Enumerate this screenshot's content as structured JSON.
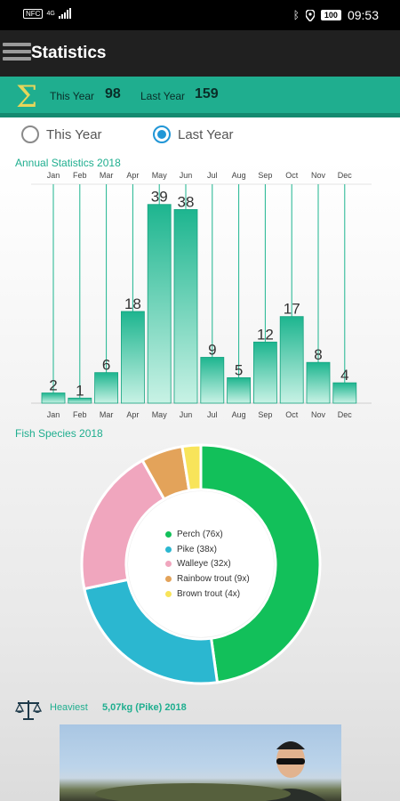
{
  "status_bar": {
    "left_badge": "NFC",
    "network": "4G",
    "battery": "100",
    "time": "09:53"
  },
  "app_bar": {
    "title": "Statistics"
  },
  "summary": {
    "this_year_label": "This Year",
    "this_year_value": "98",
    "last_year_label": "Last Year",
    "last_year_value": "159"
  },
  "filter": {
    "options": [
      {
        "label": "This Year",
        "checked": false
      },
      {
        "label": "Last Year",
        "checked": true
      }
    ]
  },
  "annual": {
    "title": "Annual Statistics 2018"
  },
  "species": {
    "title": "Fish Species 2018"
  },
  "heaviest": {
    "label": "Heaviest",
    "value": "5,07kg (Pike) 2018"
  },
  "colors": {
    "accent": "#1fae8f",
    "bar_top": "#1db58f",
    "bar_bottom": "#c8f2e5",
    "radio_active": "#2196d6"
  },
  "chart_data": [
    {
      "type": "bar",
      "title": "Annual Statistics 2018",
      "categories": [
        "Jan",
        "Feb",
        "Mar",
        "Apr",
        "May",
        "Jun",
        "Jul",
        "Aug",
        "Sep",
        "Oct",
        "Nov",
        "Dec"
      ],
      "values": [
        2,
        1,
        6,
        18,
        39,
        38,
        9,
        5,
        12,
        17,
        8,
        4
      ],
      "ylim": [
        0,
        40
      ],
      "grid": true
    },
    {
      "type": "pie",
      "title": "Fish Species 2018",
      "categories": [
        "Perch (76x)",
        "Pike (38x)",
        "Walleye (32x)",
        "Rainbow trout (9x)",
        "Brown trout (4x)"
      ],
      "values": [
        76,
        38,
        32,
        9,
        4
      ],
      "colors": [
        "#12c05a",
        "#2bb7d0",
        "#f0a6be",
        "#e3a35a",
        "#f8e45a"
      ],
      "legend": "center"
    }
  ]
}
